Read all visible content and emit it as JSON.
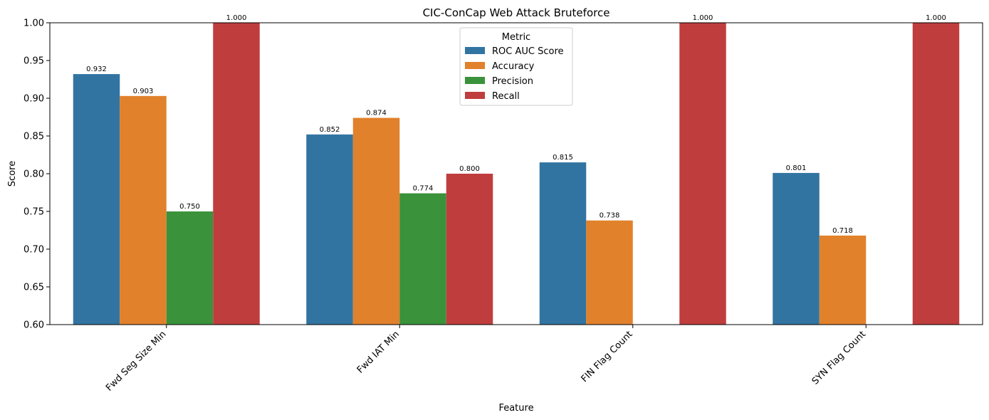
{
  "chart_data": {
    "type": "bar",
    "title": "CIC-ConCap Web Attack Bruteforce",
    "xlabel": "Feature",
    "ylabel": "Score",
    "ylim": [
      0.6,
      1.0
    ],
    "yticks": [
      "0.60",
      "0.65",
      "0.70",
      "0.75",
      "0.80",
      "0.85",
      "0.90",
      "0.95",
      "1.00"
    ],
    "categories": [
      "Fwd Seg Size Min",
      "Fwd IAT Min",
      "FIN Flag Count",
      "SYN Flag Count"
    ],
    "legend_title": "Metric",
    "legend_position": "top-center",
    "grid": false,
    "series": [
      {
        "name": "ROC AUC Score",
        "color": "#3274a1",
        "values": [
          0.932,
          0.852,
          0.815,
          0.801
        ],
        "labels": [
          "0.932",
          "0.852",
          "0.815",
          "0.801"
        ]
      },
      {
        "name": "Accuracy",
        "color": "#e1812c",
        "values": [
          0.903,
          0.874,
          0.738,
          0.718
        ],
        "labels": [
          "0.903",
          "0.874",
          "0.738",
          "0.718"
        ]
      },
      {
        "name": "Precision",
        "color": "#3a923a",
        "values": [
          0.75,
          0.774,
          null,
          null
        ],
        "labels": [
          "0.750",
          "0.774",
          "",
          ""
        ]
      },
      {
        "name": "Recall",
        "color": "#c03d3e",
        "values": [
          1.0,
          0.8,
          1.0,
          1.0
        ],
        "labels": [
          "1.000",
          "0.800",
          "1.000",
          "1.000"
        ]
      }
    ]
  }
}
